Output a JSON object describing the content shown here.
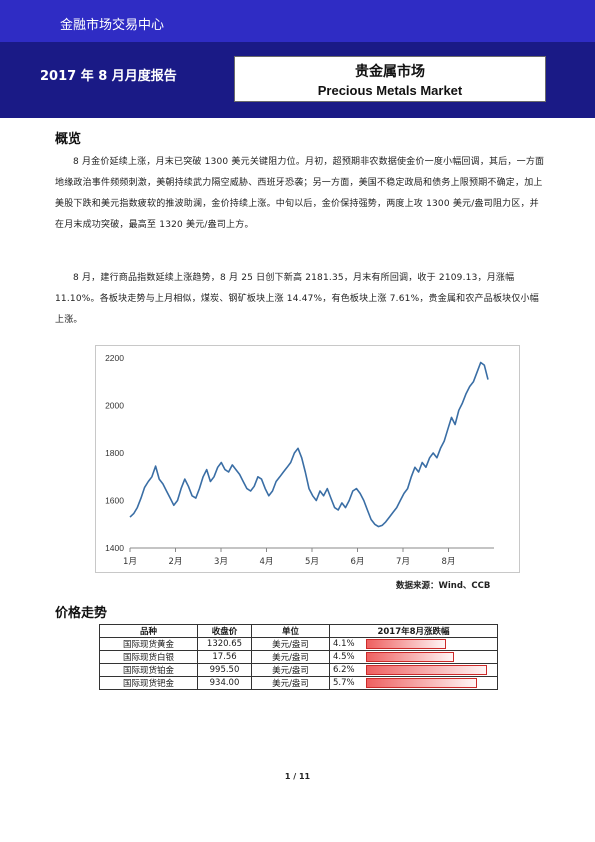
{
  "header": {
    "brand": "金融市场交易中心",
    "report_title": "2017 年 8 月月度报告",
    "title_cn": "贵金属市场",
    "title_en": "Precious Metals Market"
  },
  "overview": {
    "heading": "概览",
    "paragraphs": [
      "8 月金价延续上涨，月末已突破 1300 美元关键阻力位。月初，超预期非农数据使金价一度小幅回调，其后，一方面地缘政治事件频频刺激，美朝持续武力隔空威胁、西班牙恐袭；另一方面，美国不稳定政局和债务上限预期不确定，加上美股下跌和美元指数疲软的推波助澜，金价持续上涨。中旬以后，金价保持强势，两度上攻 1300 美元/盎司阻力区，并在月末成功突破，最高至 1320 美元/盎司上方。",
      "8 月，建行商品指数延续上涨趋势，8 月 25 日创下新高 2181.35，月末有所回调，收于 2109.13，月涨幅 11.10%。各板块走势与上月相似，煤炭、钢矿板块上涨 14.47%，有色板块上涨 7.61%，贵金属和农产品板块仅小幅上涨。"
    ]
  },
  "chart_data": {
    "type": "line",
    "x_tick_labels": [
      "1月",
      "2月",
      "3月",
      "4月",
      "5月",
      "6月",
      "7月",
      "8月"
    ],
    "y_ticks": [
      1400,
      1600,
      1800,
      2000,
      2200
    ],
    "ylim": [
      1400,
      2200
    ],
    "grid": false,
    "series": [
      {
        "color": "#3a6ea5",
        "values": [
          1530,
          1545,
          1570,
          1610,
          1655,
          1680,
          1700,
          1745,
          1690,
          1670,
          1640,
          1610,
          1580,
          1600,
          1650,
          1690,
          1660,
          1620,
          1610,
          1650,
          1700,
          1730,
          1680,
          1700,
          1740,
          1760,
          1730,
          1720,
          1750,
          1730,
          1710,
          1680,
          1650,
          1640,
          1660,
          1700,
          1690,
          1650,
          1620,
          1640,
          1680,
          1700,
          1720,
          1740,
          1760,
          1800,
          1820,
          1780,
          1720,
          1650,
          1620,
          1600,
          1640,
          1620,
          1650,
          1610,
          1570,
          1560,
          1590,
          1570,
          1600,
          1640,
          1650,
          1630,
          1600,
          1560,
          1520,
          1500,
          1490,
          1495,
          1510,
          1530,
          1550,
          1570,
          1600,
          1630,
          1650,
          1700,
          1740,
          1720,
          1760,
          1740,
          1780,
          1800,
          1780,
          1820,
          1850,
          1900,
          1950,
          1920,
          1980,
          2010,
          2050,
          2080,
          2100,
          2140,
          2181,
          2170,
          2109
        ]
      }
    ]
  },
  "source_note": "数据来源：Wind、CCB",
  "prices": {
    "heading": "价格走势",
    "columns": [
      "品种",
      "收盘价",
      "单位",
      "2017年8月涨跌幅"
    ],
    "rows": [
      {
        "name": "国际现货黄金",
        "close": "1320.65",
        "unit": "美元/盎司",
        "change": "4.1%",
        "change_value": 4.1
      },
      {
        "name": "国际现货白银",
        "close": "17.56",
        "unit": "美元/盎司",
        "change": "4.5%",
        "change_value": 4.5
      },
      {
        "name": "国际现货铂金",
        "close": "995.50",
        "unit": "美元/盎司",
        "change": "6.2%",
        "change_value": 6.2
      },
      {
        "name": "国际现货钯金",
        "close": "934.00",
        "unit": "美元/盎司",
        "change": "5.7%",
        "change_value": 5.7
      }
    ]
  },
  "footer": {
    "page": "1 / 11"
  }
}
